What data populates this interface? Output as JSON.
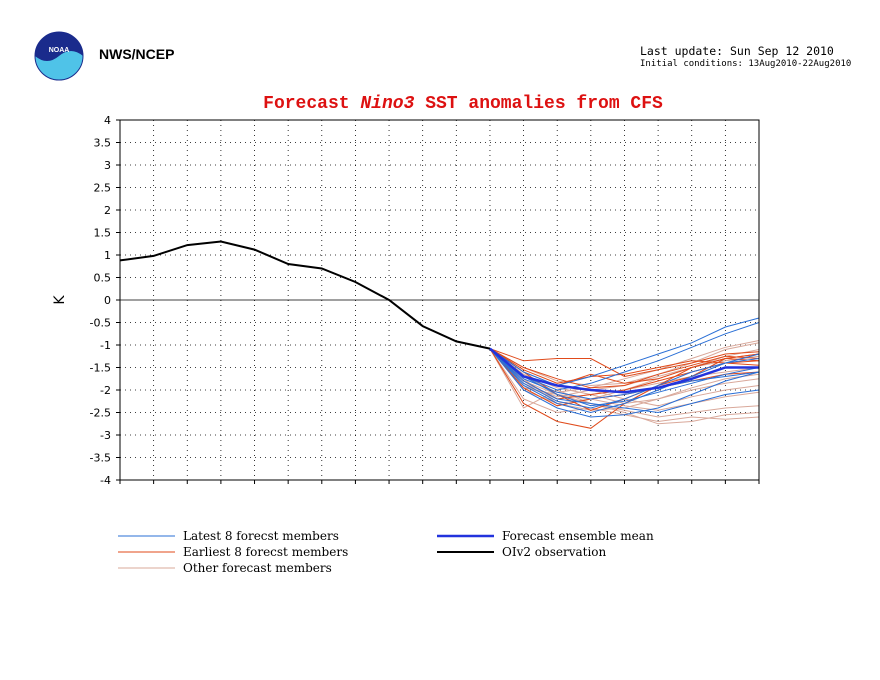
{
  "header": {
    "org": "NWS/NCEP",
    "last_update": "Last update: Sun Sep 12 2010",
    "initial_conditions": "Initial conditions: 13Aug2010-22Aug2010",
    "logo_text": "NOAA"
  },
  "colors": {
    "latest": "#2a6fd6",
    "earliest": "#e04a1a",
    "other": "#d9a89a",
    "mean": "#2233dd",
    "observation": "#000000",
    "title": "#dd1111"
  },
  "chart_data": {
    "type": "line",
    "title_parts": [
      "Forecast ",
      "Nino3",
      " SST anomalies from CFS"
    ],
    "ylabel": "K",
    "ylim": [
      -4,
      4
    ],
    "yticks": [
      "4",
      "3.5",
      "3",
      "2.5",
      "2",
      "1.5",
      "1",
      "0.5",
      "0",
      "-0.5",
      "-1",
      "-1.5",
      "-2",
      "-2.5",
      "-3",
      "-3.5",
      "-4"
    ],
    "xlim": [
      0,
      19
    ],
    "grid": true,
    "observation": {
      "name": "OIv2 observation",
      "x": [
        0,
        1,
        2,
        3,
        4,
        5,
        6,
        7,
        8,
        9,
        10,
        11
      ],
      "y": [
        0.88,
        0.98,
        1.22,
        1.3,
        1.12,
        0.8,
        0.7,
        0.4,
        0.0,
        -0.58,
        -0.92,
        -1.08
      ]
    },
    "ensemble_mean": {
      "name": "Forecast ensemble mean",
      "x": [
        11,
        12,
        13,
        14,
        15,
        16,
        17,
        18,
        19
      ],
      "y": [
        -1.08,
        -1.7,
        -1.9,
        -2.0,
        -2.05,
        -1.95,
        -1.75,
        -1.5,
        -1.5
      ]
    },
    "latest_members": {
      "name": "Latest 8 forecst members",
      "x": [
        11,
        12,
        13,
        14,
        15,
        16,
        17,
        18,
        19
      ],
      "series": [
        [
          -1.08,
          -1.6,
          -1.9,
          -1.7,
          -1.45,
          -1.2,
          -0.95,
          -0.6,
          -0.4
        ],
        [
          -1.08,
          -1.7,
          -2.0,
          -1.85,
          -1.6,
          -1.35,
          -1.05,
          -0.75,
          -0.5
        ],
        [
          -1.08,
          -1.9,
          -2.3,
          -2.5,
          -2.3,
          -2.0,
          -1.7,
          -1.4,
          -1.2
        ],
        [
          -1.08,
          -2.0,
          -2.4,
          -2.6,
          -2.55,
          -2.4,
          -2.1,
          -1.8,
          -1.6
        ],
        [
          -1.08,
          -1.8,
          -2.2,
          -2.3,
          -2.4,
          -2.5,
          -2.3,
          -2.1,
          -2.0
        ],
        [
          -1.08,
          -1.7,
          -2.1,
          -2.35,
          -2.25,
          -2.05,
          -1.85,
          -1.65,
          -1.5
        ],
        [
          -1.08,
          -1.85,
          -2.25,
          -2.4,
          -2.2,
          -1.9,
          -1.6,
          -1.4,
          -1.3
        ],
        [
          -1.08,
          -1.75,
          -2.05,
          -2.2,
          -2.1,
          -1.95,
          -1.8,
          -1.7,
          -1.6
        ]
      ]
    },
    "earliest_members": {
      "name": "Earliest 8 forecst members",
      "x": [
        11,
        12,
        13,
        14,
        15,
        16,
        17,
        18,
        19
      ],
      "series": [
        [
          -1.08,
          -1.35,
          -1.3,
          -1.3,
          -1.7,
          -1.55,
          -1.4,
          -1.2,
          -1.15
        ],
        [
          -1.08,
          -2.3,
          -2.7,
          -2.85,
          -2.3,
          -1.9,
          -1.5,
          -1.3,
          -1.35
        ],
        [
          -1.08,
          -1.6,
          -2.1,
          -2.45,
          -2.2,
          -1.9,
          -1.7,
          -1.3,
          -1.2
        ],
        [
          -1.08,
          -1.5,
          -1.75,
          -1.95,
          -1.9,
          -1.65,
          -1.45,
          -1.25,
          -1.3
        ],
        [
          -1.08,
          -1.7,
          -1.9,
          -1.65,
          -1.85,
          -1.75,
          -1.5,
          -1.3,
          -1.2
        ],
        [
          -1.08,
          -1.8,
          -2.2,
          -2.1,
          -2.0,
          -1.8,
          -1.6,
          -1.4,
          -1.35
        ],
        [
          -1.08,
          -1.55,
          -1.85,
          -1.7,
          -1.65,
          -1.5,
          -1.35,
          -1.4,
          -1.45
        ],
        [
          -1.08,
          -1.95,
          -2.35,
          -2.2,
          -2.1,
          -1.95,
          -1.8,
          -1.65,
          -1.6
        ]
      ]
    },
    "other_members": {
      "name": "Other forecast members",
      "x": [
        11,
        12,
        13,
        14,
        15,
        16,
        17,
        18,
        19
      ],
      "series": [
        [
          -1.08,
          -2.4,
          -2.0,
          -2.3,
          -2.45,
          -2.6,
          -2.5,
          -2.4,
          -2.35
        ],
        [
          -1.08,
          -2.2,
          -2.5,
          -2.4,
          -2.55,
          -2.7,
          -2.6,
          -2.65,
          -2.6
        ],
        [
          -1.08,
          -1.8,
          -2.1,
          -2.3,
          -2.5,
          -2.75,
          -2.7,
          -2.55,
          -2.5
        ],
        [
          -1.08,
          -1.6,
          -1.9,
          -2.0,
          -2.2,
          -2.35,
          -2.15,
          -2.0,
          -1.9
        ],
        [
          -1.08,
          -1.9,
          -2.2,
          -2.1,
          -2.0,
          -1.85,
          -1.7,
          -1.6,
          -1.5
        ],
        [
          -1.08,
          -1.5,
          -1.8,
          -1.9,
          -1.85,
          -1.65,
          -1.4,
          -1.1,
          -0.95
        ],
        [
          -1.08,
          -1.7,
          -2.05,
          -1.95,
          -1.75,
          -1.55,
          -1.3,
          -1.05,
          -0.9
        ],
        [
          -1.08,
          -2.0,
          -2.3,
          -2.2,
          -2.0,
          -1.75,
          -1.5,
          -1.25,
          -1.1
        ],
        [
          -1.08,
          -1.65,
          -1.95,
          -2.1,
          -2.3,
          -2.2,
          -2.0,
          -1.85,
          -1.75
        ],
        [
          -1.08,
          -1.85,
          -2.15,
          -2.0,
          -1.9,
          -1.7,
          -1.5,
          -1.35,
          -1.25
        ],
        [
          -1.08,
          -1.75,
          -2.3,
          -2.45,
          -2.4,
          -2.2,
          -1.95,
          -1.75,
          -1.65
        ],
        [
          -1.08,
          -1.95,
          -2.1,
          -2.2,
          -2.35,
          -2.45,
          -2.3,
          -2.15,
          -2.05
        ]
      ]
    },
    "legend": [
      {
        "label": "Latest 8 forecst members",
        "key": "latest"
      },
      {
        "label": "Earliest 8 forecst members",
        "key": "earliest"
      },
      {
        "label": "Other forecast members",
        "key": "other"
      },
      {
        "label": "Forecast ensemble mean",
        "key": "mean"
      },
      {
        "label": "OIv2 observation",
        "key": "observation"
      }
    ]
  }
}
